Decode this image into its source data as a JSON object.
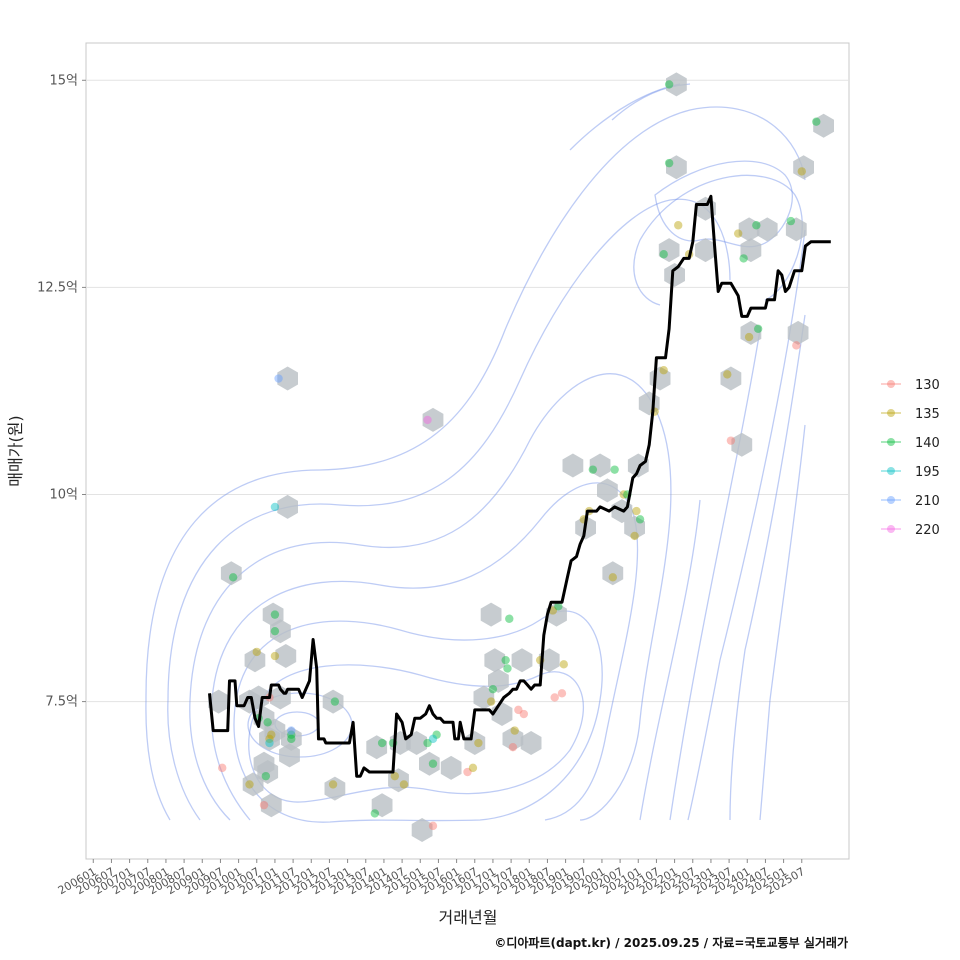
{
  "chart_data": {
    "type": "scatter",
    "xlabel": "거래년월",
    "ylabel": "매매가(원)",
    "caption": "©디아파트(dapt.kr) / 2025.09.25 / 자료=국토교통부 실거래가",
    "y_ticks": [
      {
        "value": 7.5,
        "label": "7.5억"
      },
      {
        "value": 10,
        "label": "10억"
      },
      {
        "value": 12.5,
        "label": "12.5억"
      },
      {
        "value": 15,
        "label": "15억"
      }
    ],
    "ylim": [
      5.6,
      15.45
    ],
    "xlim": [
      2005.8,
      2026.8
    ],
    "x_ticks": [
      {
        "value": 2006.0,
        "label": "200601"
      },
      {
        "value": 2006.5,
        "label": "200607"
      },
      {
        "value": 2007.0,
        "label": "200701"
      },
      {
        "value": 2007.5,
        "label": "200707"
      },
      {
        "value": 2008.0,
        "label": "200801"
      },
      {
        "value": 2008.5,
        "label": "200807"
      },
      {
        "value": 2009.0,
        "label": "200901"
      },
      {
        "value": 2009.5,
        "label": "200907"
      },
      {
        "value": 2010.0,
        "label": "201001"
      },
      {
        "value": 2010.5,
        "label": "201007"
      },
      {
        "value": 2011.0,
        "label": "201101"
      },
      {
        "value": 2011.5,
        "label": "201107"
      },
      {
        "value": 2012.0,
        "label": "201201"
      },
      {
        "value": 2012.5,
        "label": "201207"
      },
      {
        "value": 2013.0,
        "label": "201301"
      },
      {
        "value": 2013.5,
        "label": "201307"
      },
      {
        "value": 2014.0,
        "label": "201401"
      },
      {
        "value": 2014.5,
        "label": "201407"
      },
      {
        "value": 2015.0,
        "label": "201501"
      },
      {
        "value": 2015.5,
        "label": "201507"
      },
      {
        "value": 2016.0,
        "label": "201601"
      },
      {
        "value": 2016.5,
        "label": "201607"
      },
      {
        "value": 2017.0,
        "label": "201701"
      },
      {
        "value": 2017.5,
        "label": "201707"
      },
      {
        "value": 2018.0,
        "label": "201801"
      },
      {
        "value": 2018.5,
        "label": "201807"
      },
      {
        "value": 2019.0,
        "label": "201901"
      },
      {
        "value": 2019.5,
        "label": "201907"
      },
      {
        "value": 2020.0,
        "label": "202001"
      },
      {
        "value": 2020.5,
        "label": "202007"
      },
      {
        "value": 2021.0,
        "label": "202101"
      },
      {
        "value": 2021.5,
        "label": "202107"
      },
      {
        "value": 2022.0,
        "label": "202201"
      },
      {
        "value": 2022.5,
        "label": "202207"
      },
      {
        "value": 2023.0,
        "label": "202301"
      },
      {
        "value": 2023.5,
        "label": "202307"
      },
      {
        "value": 2024.0,
        "label": "202401"
      },
      {
        "value": 2024.5,
        "label": "202407"
      },
      {
        "value": 2025.0,
        "label": "202501"
      },
      {
        "value": 2025.5,
        "label": "202507"
      }
    ],
    "legend": {
      "position": "right",
      "entries": [
        {
          "name": "130",
          "color": "#F8766D"
        },
        {
          "name": "135",
          "color": "#B79F00"
        },
        {
          "name": "140",
          "color": "#00BA38"
        },
        {
          "name": "195",
          "color": "#00BFC4"
        },
        {
          "name": "210",
          "color": "#619CFF"
        },
        {
          "name": "220",
          "color": "#F564E3"
        }
      ]
    },
    "series": [
      {
        "name": "130",
        "color": "#F8766D",
        "points": [
          [
            2009.55,
            6.7
          ],
          [
            2010.7,
            6.25
          ],
          [
            2010.85,
            7.55
          ],
          [
            2015.35,
            6.0
          ],
          [
            2016.3,
            6.65
          ],
          [
            2017.55,
            6.95
          ],
          [
            2017.85,
            7.35
          ],
          [
            2017.7,
            7.4
          ],
          [
            2018.7,
            7.55
          ],
          [
            2018.9,
            7.6
          ],
          [
            2023.55,
            10.65
          ],
          [
            2025.35,
            11.8
          ]
        ]
      },
      {
        "name": "135",
        "color": "#B79F00",
        "points": [
          [
            2010.5,
            8.1
          ],
          [
            2010.9,
            7.1
          ],
          [
            2010.85,
            7.05
          ],
          [
            2010.3,
            6.5
          ],
          [
            2011.0,
            8.05
          ],
          [
            2012.6,
            6.5
          ],
          [
            2014.3,
            6.6
          ],
          [
            2014.55,
            6.5
          ],
          [
            2016.45,
            6.7
          ],
          [
            2016.6,
            7.0
          ],
          [
            2016.95,
            7.5
          ],
          [
            2017.6,
            7.15
          ],
          [
            2018.3,
            8.0
          ],
          [
            2018.65,
            8.6
          ],
          [
            2018.95,
            7.95
          ],
          [
            2019.5,
            9.7
          ],
          [
            2019.65,
            9.8
          ],
          [
            2020.3,
            9.0
          ],
          [
            2020.6,
            10.0
          ],
          [
            2020.9,
            9.5
          ],
          [
            2020.95,
            9.8
          ],
          [
            2021.45,
            11.0
          ],
          [
            2021.7,
            11.5
          ],
          [
            2022.1,
            13.25
          ],
          [
            2022.4,
            12.9
          ],
          [
            2023.45,
            11.45
          ],
          [
            2023.75,
            13.15
          ],
          [
            2024.05,
            11.9
          ],
          [
            2025.5,
            13.9
          ]
        ]
      },
      {
        "name": "140",
        "color": "#00BA38",
        "points": [
          [
            2009.85,
            9.0
          ],
          [
            2010.55,
            7.3
          ],
          [
            2010.75,
            6.6
          ],
          [
            2010.8,
            7.25
          ],
          [
            2011.0,
            8.55
          ],
          [
            2011.0,
            8.35
          ],
          [
            2011.45,
            7.1
          ],
          [
            2011.45,
            7.05
          ],
          [
            2012.65,
            7.5
          ],
          [
            2013.75,
            6.15
          ],
          [
            2013.95,
            7.0
          ],
          [
            2014.25,
            7.0
          ],
          [
            2015.2,
            7.0
          ],
          [
            2015.35,
            6.75
          ],
          [
            2015.45,
            7.1
          ],
          [
            2017.0,
            7.65
          ],
          [
            2017.35,
            8.0
          ],
          [
            2017.4,
            7.9
          ],
          [
            2017.45,
            8.5
          ],
          [
            2018.8,
            8.65
          ],
          [
            2019.75,
            10.3
          ],
          [
            2020.35,
            10.3
          ],
          [
            2020.7,
            10.0
          ],
          [
            2021.05,
            9.7
          ],
          [
            2021.7,
            12.9
          ],
          [
            2021.85,
            14.0
          ],
          [
            2021.85,
            14.95
          ],
          [
            2023.9,
            12.85
          ],
          [
            2024.25,
            13.25
          ],
          [
            2024.3,
            12.0
          ],
          [
            2025.2,
            13.3
          ],
          [
            2025.9,
            14.5
          ]
        ]
      },
      {
        "name": "195",
        "color": "#00BFC4",
        "points": [
          [
            2010.85,
            7.0
          ],
          [
            2011.0,
            9.85
          ],
          [
            2015.35,
            7.05
          ]
        ]
      },
      {
        "name": "210",
        "color": "#619CFF",
        "points": [
          [
            2011.1,
            11.4
          ],
          [
            2011.45,
            7.15
          ]
        ]
      },
      {
        "name": "220",
        "color": "#F564E3",
        "points": [
          [
            2015.2,
            10.9
          ]
        ]
      }
    ],
    "trend_line": {
      "name": "median",
      "color": "#000000",
      "points": [
        [
          2009.2,
          7.6
        ],
        [
          2009.3,
          7.15
        ],
        [
          2009.7,
          7.15
        ],
        [
          2009.75,
          7.75
        ],
        [
          2009.9,
          7.75
        ],
        [
          2009.95,
          7.45
        ],
        [
          2010.15,
          7.45
        ],
        [
          2010.25,
          7.55
        ],
        [
          2010.35,
          7.55
        ],
        [
          2010.45,
          7.3
        ],
        [
          2010.55,
          7.2
        ],
        [
          2010.65,
          7.55
        ],
        [
          2010.85,
          7.55
        ],
        [
          2010.9,
          7.7
        ],
        [
          2011.1,
          7.7
        ],
        [
          2011.15,
          7.65
        ],
        [
          2011.25,
          7.6
        ],
        [
          2011.3,
          7.6
        ],
        [
          2011.35,
          7.65
        ],
        [
          2011.65,
          7.65
        ],
        [
          2011.75,
          7.55
        ],
        [
          2011.95,
          7.75
        ],
        [
          2012.05,
          8.25
        ],
        [
          2012.15,
          7.9
        ],
        [
          2012.2,
          7.05
        ],
        [
          2012.35,
          7.05
        ],
        [
          2012.4,
          7.0
        ],
        [
          2013.05,
          7.0
        ],
        [
          2013.15,
          7.25
        ],
        [
          2013.25,
          6.6
        ],
        [
          2013.35,
          6.6
        ],
        [
          2013.45,
          6.7
        ],
        [
          2013.6,
          6.65
        ],
        [
          2014.25,
          6.65
        ],
        [
          2014.35,
          7.35
        ],
        [
          2014.5,
          7.25
        ],
        [
          2014.6,
          7.05
        ],
        [
          2014.75,
          7.1
        ],
        [
          2014.85,
          7.3
        ],
        [
          2015.0,
          7.3
        ],
        [
          2015.15,
          7.35
        ],
        [
          2015.25,
          7.45
        ],
        [
          2015.35,
          7.35
        ],
        [
          2015.45,
          7.3
        ],
        [
          2015.55,
          7.3
        ],
        [
          2015.65,
          7.25
        ],
        [
          2015.9,
          7.25
        ],
        [
          2015.95,
          7.05
        ],
        [
          2016.05,
          7.05
        ],
        [
          2016.1,
          7.25
        ],
        [
          2016.2,
          7.05
        ],
        [
          2016.4,
          7.05
        ],
        [
          2016.5,
          7.4
        ],
        [
          2016.7,
          7.4
        ],
        [
          2016.9,
          7.4
        ],
        [
          2017.0,
          7.35
        ],
        [
          2017.15,
          7.45
        ],
        [
          2017.3,
          7.55
        ],
        [
          2017.45,
          7.6
        ],
        [
          2017.55,
          7.65
        ],
        [
          2017.65,
          7.65
        ],
        [
          2017.75,
          7.75
        ],
        [
          2017.85,
          7.75
        ],
        [
          2017.95,
          7.7
        ],
        [
          2018.05,
          7.65
        ],
        [
          2018.15,
          7.7
        ],
        [
          2018.3,
          7.7
        ],
        [
          2018.4,
          8.3
        ],
        [
          2018.5,
          8.55
        ],
        [
          2018.6,
          8.7
        ],
        [
          2018.9,
          8.7
        ],
        [
          2019.05,
          9.0
        ],
        [
          2019.15,
          9.2
        ],
        [
          2019.3,
          9.25
        ],
        [
          2019.4,
          9.4
        ],
        [
          2019.5,
          9.5
        ],
        [
          2019.6,
          9.8
        ],
        [
          2019.85,
          9.8
        ],
        [
          2019.95,
          9.85
        ],
        [
          2020.2,
          9.8
        ],
        [
          2020.35,
          9.85
        ],
        [
          2020.6,
          9.8
        ],
        [
          2020.7,
          9.85
        ],
        [
          2020.85,
          10.2
        ],
        [
          2020.95,
          10.25
        ],
        [
          2021.05,
          10.35
        ],
        [
          2021.2,
          10.4
        ],
        [
          2021.3,
          10.6
        ],
        [
          2021.4,
          11.0
        ],
        [
          2021.5,
          11.65
        ],
        [
          2021.75,
          11.65
        ],
        [
          2021.85,
          12.0
        ],
        [
          2021.95,
          12.7
        ],
        [
          2022.1,
          12.75
        ],
        [
          2022.25,
          12.85
        ],
        [
          2022.4,
          12.85
        ],
        [
          2022.5,
          13.05
        ],
        [
          2022.6,
          13.5
        ],
        [
          2022.9,
          13.5
        ],
        [
          2023.0,
          13.6
        ],
        [
          2023.1,
          13.0
        ],
        [
          2023.2,
          12.45
        ],
        [
          2023.3,
          12.55
        ],
        [
          2023.55,
          12.55
        ],
        [
          2023.75,
          12.4
        ],
        [
          2023.85,
          12.15
        ],
        [
          2024.0,
          12.15
        ],
        [
          2024.1,
          12.25
        ],
        [
          2024.5,
          12.25
        ],
        [
          2024.55,
          12.35
        ],
        [
          2024.75,
          12.35
        ],
        [
          2024.85,
          12.7
        ],
        [
          2024.95,
          12.65
        ],
        [
          2025.05,
          12.45
        ],
        [
          2025.15,
          12.5
        ],
        [
          2025.3,
          12.7
        ],
        [
          2025.5,
          12.7
        ],
        [
          2025.6,
          13.0
        ],
        [
          2025.75,
          13.05
        ],
        [
          2026.3,
          13.05
        ]
      ]
    },
    "hexbins": [
      [
        2009.45,
        7.5
      ],
      [
        2009.8,
        9.05
      ],
      [
        2010.3,
        7.5
      ],
      [
        2010.45,
        8.0
      ],
      [
        2010.55,
        7.55
      ],
      [
        2010.7,
        7.3
      ],
      [
        2010.8,
        6.65
      ],
      [
        2010.9,
        6.25
      ],
      [
        2010.7,
        6.75
      ],
      [
        2010.4,
        6.5
      ],
      [
        2010.85,
        7.05
      ],
      [
        2010.95,
        8.55
      ],
      [
        2011.15,
        8.35
      ],
      [
        2011.3,
        8.05
      ],
      [
        2011.15,
        7.55
      ],
      [
        2011.0,
        7.15
      ],
      [
        2011.45,
        7.05
      ],
      [
        2011.4,
        6.85
      ],
      [
        2011.35,
        11.4
      ],
      [
        2011.35,
        9.85
      ],
      [
        2012.6,
        7.5
      ],
      [
        2012.65,
        6.45
      ],
      [
        2013.8,
        6.95
      ],
      [
        2013.95,
        6.25
      ],
      [
        2014.4,
        6.55
      ],
      [
        2014.45,
        7.0
      ],
      [
        2014.9,
        7.0
      ],
      [
        2015.05,
        5.95
      ],
      [
        2015.25,
        6.75
      ],
      [
        2015.35,
        10.9
      ],
      [
        2015.85,
        6.7
      ],
      [
        2016.5,
        7.0
      ],
      [
        2016.75,
        7.55
      ],
      [
        2016.95,
        8.55
      ],
      [
        2017.05,
        8.0
      ],
      [
        2017.15,
        7.75
      ],
      [
        2017.25,
        7.35
      ],
      [
        2017.55,
        7.05
      ],
      [
        2017.8,
        8.0
      ],
      [
        2018.05,
        7.0
      ],
      [
        2018.55,
        8.0
      ],
      [
        2018.75,
        8.55
      ],
      [
        2019.2,
        10.35
      ],
      [
        2019.55,
        9.6
      ],
      [
        2019.95,
        10.35
      ],
      [
        2020.15,
        10.05
      ],
      [
        2020.3,
        9.05
      ],
      [
        2020.55,
        9.8
      ],
      [
        2020.9,
        9.6
      ],
      [
        2021.0,
        10.35
      ],
      [
        2021.3,
        11.1
      ],
      [
        2021.6,
        11.4
      ],
      [
        2021.85,
        12.95
      ],
      [
        2022.0,
        12.65
      ],
      [
        2022.05,
        13.95
      ],
      [
        2022.05,
        14.95
      ],
      [
        2022.85,
        13.45
      ],
      [
        2022.85,
        12.95
      ],
      [
        2023.55,
        11.4
      ],
      [
        2023.85,
        10.6
      ],
      [
        2024.05,
        13.2
      ],
      [
        2024.1,
        12.95
      ],
      [
        2024.1,
        11.95
      ],
      [
        2024.55,
        13.2
      ],
      [
        2025.35,
        13.2
      ],
      [
        2025.4,
        11.95
      ],
      [
        2025.55,
        13.95
      ],
      [
        2026.1,
        14.45
      ]
    ]
  }
}
